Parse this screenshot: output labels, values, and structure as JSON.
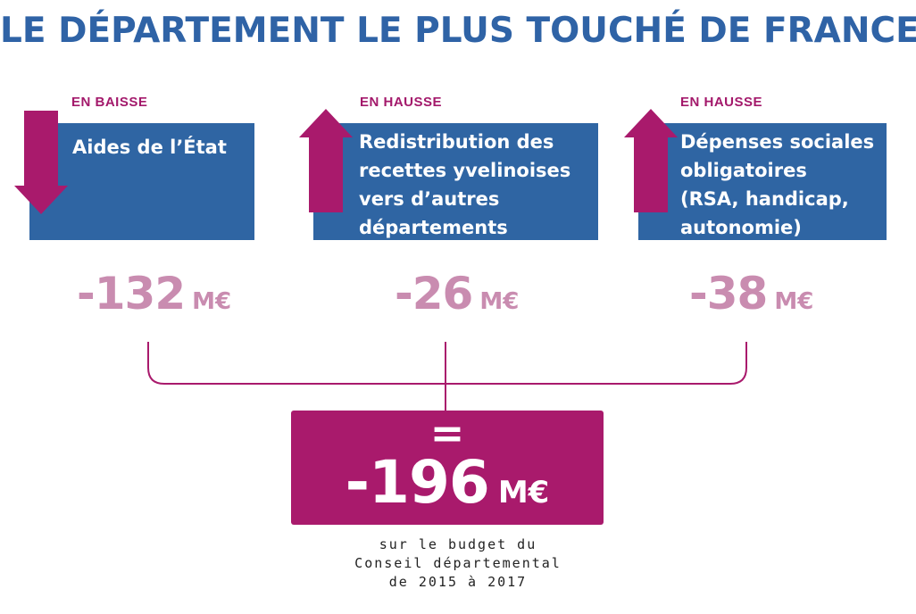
{
  "title": "LE DÉPARTEMENT LE PLUS TOUCHÉ DE FRANCE",
  "colors": {
    "title_blue": "#2f63a6",
    "box_blue": "#2f65a3",
    "magenta": "#a91a6c",
    "pink_amount": "#c98cb0"
  },
  "items": [
    {
      "tag": "EN BAISSE",
      "direction": "down",
      "label": "Aides de l’État",
      "amount": "-132",
      "unit": "M€"
    },
    {
      "tag": "EN HAUSSE",
      "direction": "up",
      "label": "Redistribution des\nrecettes yvelinoises\nvers d’autres\ndépartements",
      "amount": "-26",
      "unit": "M€"
    },
    {
      "tag": "EN HAUSSE",
      "direction": "up",
      "label": "Dépenses sociales\nobligatoires\n(RSA, handicap,\nautonomie)",
      "amount": "-38",
      "unit": "M€"
    }
  ],
  "total": {
    "equals": "=",
    "amount": "-196",
    "unit": "M€"
  },
  "caption": [
    "sur le budget du",
    "Conseil départemental",
    "de 2015 à 2017"
  ]
}
